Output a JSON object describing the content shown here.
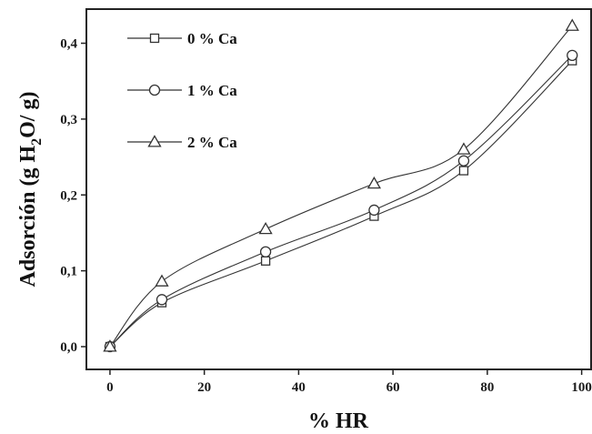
{
  "chart_data": {
    "type": "line",
    "title": "",
    "xlabel": "% HR",
    "ylabel_parts": [
      "Adsorción (g H",
      "2",
      "O/ g)"
    ],
    "xlim": [
      -5,
      102
    ],
    "ylim": [
      -0.03,
      0.445
    ],
    "x_ticks": [
      0,
      20,
      40,
      60,
      80,
      100
    ],
    "x_tick_labels": [
      "0",
      "20",
      "40",
      "60",
      "80",
      "100"
    ],
    "y_ticks": [
      0,
      0.1,
      0.2,
      0.3,
      0.4
    ],
    "y_tick_labels": [
      "0,0",
      "0,1",
      "0,2",
      "0,3",
      "0,4"
    ],
    "grid": false,
    "legend_position": "top-left",
    "line_color": "#333333",
    "series": [
      {
        "name": "0 % Ca",
        "marker": "square",
        "x": [
          0,
          11,
          33,
          56,
          75,
          98
        ],
        "y": [
          0.0,
          0.058,
          0.113,
          0.172,
          0.232,
          0.377
        ]
      },
      {
        "name": "1 % Ca",
        "marker": "circle",
        "x": [
          0,
          11,
          33,
          56,
          75,
          98
        ],
        "y": [
          0.0,
          0.062,
          0.125,
          0.18,
          0.245,
          0.384
        ]
      },
      {
        "name": "2 % Ca",
        "marker": "triangle",
        "x": [
          0,
          11,
          33,
          56,
          75,
          98
        ],
        "y": [
          0.0,
          0.086,
          0.155,
          0.215,
          0.26,
          0.423
        ]
      }
    ]
  }
}
